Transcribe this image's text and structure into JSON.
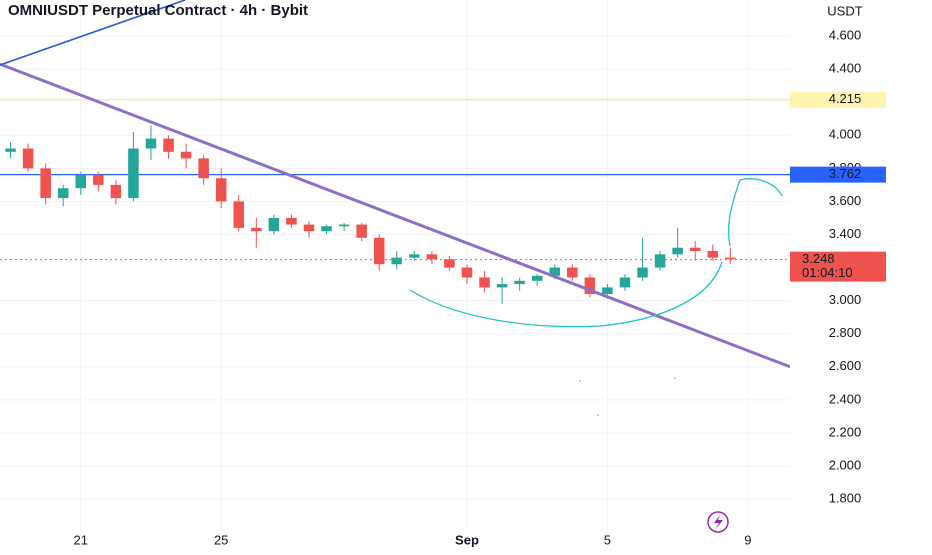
{
  "chart_data": {
    "type": "candlestick",
    "title": "OMNIUSDT Perpetual Contract · 4h · Bybit",
    "currency": "USDT",
    "x": [
      -2,
      -1.5,
      -1,
      -0.5,
      0,
      0.5,
      1,
      1.5,
      2,
      2.5,
      3,
      3.5,
      4,
      4.5,
      5,
      5.5,
      6,
      6.5,
      7,
      7.5,
      8,
      8.5,
      9,
      9.5,
      10,
      10.5,
      11,
      11.5,
      12,
      12.5,
      13,
      13.5,
      14,
      14.5,
      15,
      15.5,
      16,
      16.5,
      17,
      17.5,
      18,
      18.5
    ],
    "open": [
      3.9,
      3.92,
      3.8,
      3.62,
      3.68,
      3.76,
      3.7,
      3.62,
      3.92,
      3.98,
      3.9,
      3.86,
      3.74,
      3.6,
      3.44,
      3.42,
      3.5,
      3.46,
      3.42,
      3.45,
      3.46,
      3.38,
      3.22,
      3.26,
      3.28,
      3.25,
      3.2,
      3.14,
      3.08,
      3.1,
      3.12,
      3.15,
      3.2,
      3.14,
      3.04,
      3.08,
      3.14,
      3.2,
      3.28,
      3.32,
      3.3,
      3.26
    ],
    "high": [
      3.96,
      3.95,
      3.83,
      3.7,
      3.78,
      3.78,
      3.73,
      4.02,
      4.06,
      4.0,
      3.95,
      3.88,
      3.8,
      3.64,
      3.5,
      3.52,
      3.52,
      3.48,
      3.46,
      3.47,
      3.47,
      3.4,
      3.3,
      3.3,
      3.3,
      3.27,
      3.22,
      3.18,
      3.14,
      3.14,
      3.16,
      3.22,
      3.22,
      3.16,
      3.1,
      3.16,
      3.38,
      3.3,
      3.44,
      3.36,
      3.34,
      3.32
    ],
    "low": [
      3.86,
      3.78,
      3.58,
      3.57,
      3.64,
      3.66,
      3.58,
      3.6,
      3.85,
      3.86,
      3.8,
      3.7,
      3.56,
      3.42,
      3.32,
      3.4,
      3.44,
      3.38,
      3.4,
      3.42,
      3.36,
      3.18,
      3.19,
      3.24,
      3.22,
      3.18,
      3.1,
      3.05,
      2.98,
      3.06,
      3.09,
      3.13,
      3.12,
      3.02,
      3.01,
      3.06,
      3.12,
      3.18,
      3.26,
      3.24,
      3.24,
      3.22
    ],
    "close": [
      3.92,
      3.8,
      3.62,
      3.68,
      3.76,
      3.7,
      3.62,
      3.92,
      3.98,
      3.9,
      3.86,
      3.74,
      3.6,
      3.44,
      3.42,
      3.5,
      3.46,
      3.42,
      3.45,
      3.46,
      3.38,
      3.22,
      3.26,
      3.28,
      3.25,
      3.2,
      3.14,
      3.08,
      3.1,
      3.12,
      3.15,
      3.2,
      3.14,
      3.04,
      3.08,
      3.14,
      3.2,
      3.28,
      3.32,
      3.3,
      3.26,
      3.25
    ],
    "up_color": "#26a69a",
    "down_color": "#ef5350",
    "xlim": [
      -2.3,
      20.2
    ],
    "ylim": [
      1.613,
      4.818
    ],
    "xticks": [
      {
        "value": 0,
        "label": "21"
      },
      {
        "value": 4,
        "label": "25"
      },
      {
        "value": 11,
        "label": "Sep"
      },
      {
        "value": 15,
        "label": "5"
      },
      {
        "value": 19,
        "label": "9"
      }
    ],
    "yticks": [
      {
        "value": 4.6,
        "label": "4.600"
      },
      {
        "value": 4.4,
        "label": "4.400"
      },
      {
        "value": 4.0,
        "label": "4.000"
      },
      {
        "value": 3.8,
        "label": "3.800"
      },
      {
        "value": 3.6,
        "label": "3.600"
      },
      {
        "value": 3.4,
        "label": "3.400"
      },
      {
        "value": 3.0,
        "label": "3.000"
      },
      {
        "value": 2.8,
        "label": "2.800"
      },
      {
        "value": 2.6,
        "label": "2.600"
      },
      {
        "value": 2.4,
        "label": "2.400"
      },
      {
        "value": 2.2,
        "label": "2.200"
      },
      {
        "value": 2.0,
        "label": "2.000"
      },
      {
        "value": 1.8,
        "label": "1.800"
      }
    ],
    "hlines": [
      {
        "value": 4.215,
        "label": "4.215",
        "color": "#f7e9a0",
        "box_color": "#fff3b0",
        "text_color": "#131722"
      },
      {
        "value": 3.762,
        "label": "3.762",
        "color": "#2962ff",
        "box_color": "#2962ff",
        "text_color": "#ffffff"
      }
    ],
    "last_price": {
      "value": 3.248,
      "label": "3.248",
      "countdown": "01:04:10",
      "color": "#ef5350"
    },
    "trendlines": [
      {
        "x": [
          -2.3,
          20.2
        ],
        "y": [
          4.43,
          2.6
        ],
        "color": "#8e6fc7"
      },
      {
        "x": [
          -2.3,
          2.97
        ],
        "y": [
          4.425,
          4.818
        ],
        "color": "#2a5bd7"
      }
    ]
  }
}
